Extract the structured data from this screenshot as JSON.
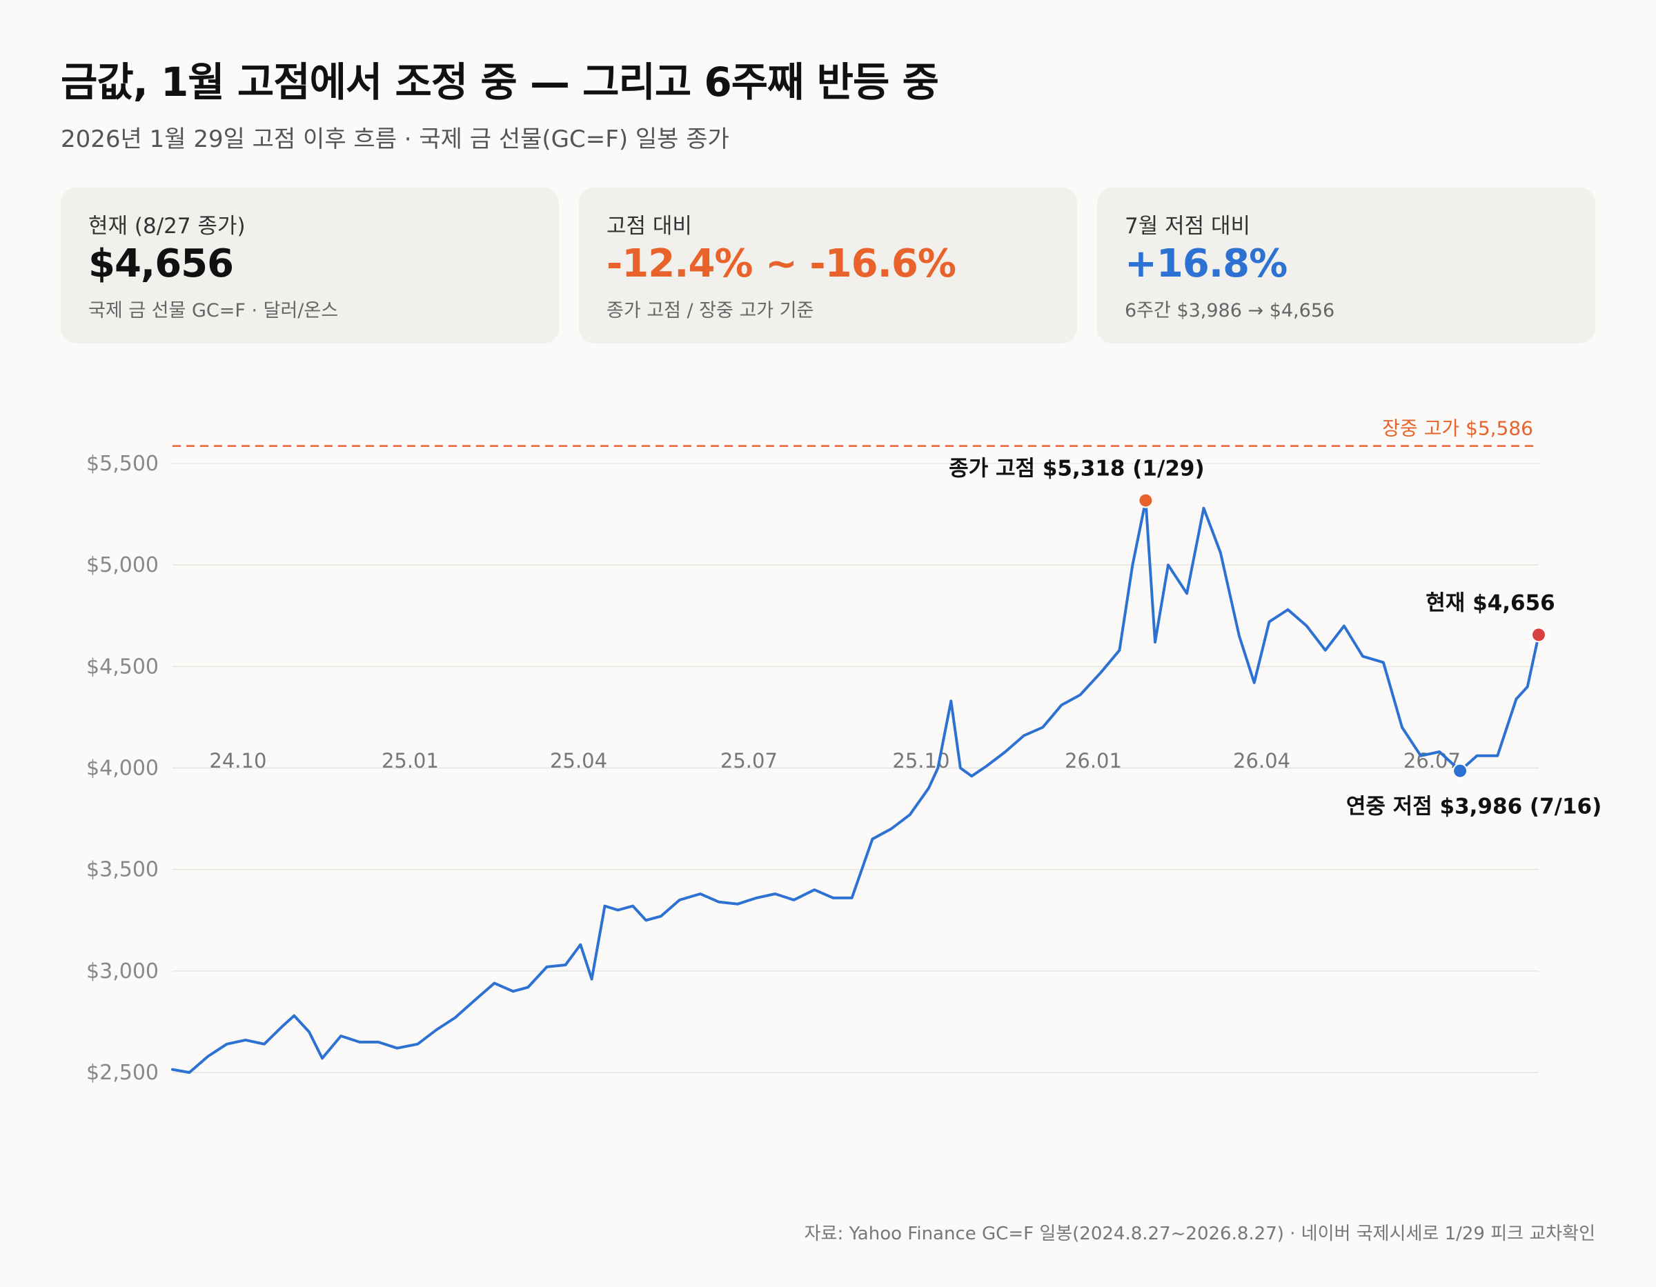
{
  "header": {
    "title": "금값, 1월 고점에서 조정 중 — 그리고 6주째 반등 중",
    "subtitle": "2026년 1월 29일 고점 이후 흐름 · 국제 금 선물(GC=F) 일봉 종가"
  },
  "cards": [
    {
      "label": "현재 (8/27 종가)",
      "value": "$4,656",
      "note": "국제 금 선물 GC=F · 달러/온스",
      "color": "#111111"
    },
    {
      "label": "고점 대비",
      "value": "-12.4% ~ -16.6%",
      "note": "종가 고점 / 장중 고가 기준",
      "color": "#e8632b"
    },
    {
      "label": "7월 저점 대비",
      "value": "+16.8%",
      "note": "6주간 $3,986 → $4,656",
      "color": "#2d72d2"
    }
  ],
  "chart_data": {
    "type": "line",
    "title": "",
    "xlabel": "",
    "ylabel": "",
    "ylim": [
      2250,
      5800
    ],
    "y_ticks": [
      2500,
      3000,
      3500,
      4000,
      4500,
      5000,
      5500
    ],
    "y_tick_labels": [
      "$2,500",
      "$3,000",
      "$3,500",
      "$4,000",
      "$4,500",
      "$5,000",
      "$5,500"
    ],
    "x_range": [
      "2024-08-27",
      "2026-08-27"
    ],
    "x_ticks": [
      "2024-10-01",
      "2025-01-01",
      "2025-04-01",
      "2025-07-01",
      "2025-10-01",
      "2026-01-01",
      "2026-04-01",
      "2026-07-01"
    ],
    "x_tick_labels": [
      "24.10",
      "25.01",
      "25.04",
      "25.07",
      "25.10",
      "26.01",
      "26.04",
      "26.07"
    ],
    "grid": true,
    "line_color": "#2d72d2",
    "series": [
      {
        "x": [
          "2024-08-27",
          "2024-09-05",
          "2024-09-15",
          "2024-09-25",
          "2024-10-05",
          "2024-10-15",
          "2024-10-25",
          "2024-10-31",
          "2024-11-08",
          "2024-11-15",
          "2024-11-25",
          "2024-12-05",
          "2024-12-15",
          "2024-12-25",
          "2025-01-05",
          "2025-01-15",
          "2025-01-25",
          "2025-02-05",
          "2025-02-15",
          "2025-02-25",
          "2025-03-05",
          "2025-03-15",
          "2025-03-25",
          "2025-04-02",
          "2025-04-08",
          "2025-04-15",
          "2025-04-22",
          "2025-04-30",
          "2025-05-07",
          "2025-05-15",
          "2025-05-25",
          "2025-06-05",
          "2025-06-15",
          "2025-06-25",
          "2025-07-05",
          "2025-07-15",
          "2025-07-25",
          "2025-08-05",
          "2025-08-15",
          "2025-08-25",
          "2025-09-05",
          "2025-09-15",
          "2025-09-25",
          "2025-10-05",
          "2025-10-10",
          "2025-10-17",
          "2025-10-22",
          "2025-10-28",
          "2025-11-05",
          "2025-11-15",
          "2025-11-25",
          "2025-12-05",
          "2025-12-15",
          "2025-12-25",
          "2026-01-05",
          "2026-01-15",
          "2026-01-22",
          "2026-01-29",
          "2026-02-03",
          "2026-02-10",
          "2026-02-20",
          "2026-03-01",
          "2026-03-10",
          "2026-03-20",
          "2026-03-28",
          "2026-04-05",
          "2026-04-15",
          "2026-04-25",
          "2026-05-05",
          "2026-05-15",
          "2026-05-25",
          "2026-06-05",
          "2026-06-15",
          "2026-06-25",
          "2026-07-05",
          "2026-07-16",
          "2026-07-25",
          "2026-08-05",
          "2026-08-15",
          "2026-08-21",
          "2026-08-27"
        ],
        "y": [
          2515,
          2500,
          2580,
          2640,
          2660,
          2640,
          2730,
          2780,
          2700,
          2570,
          2680,
          2650,
          2650,
          2620,
          2640,
          2710,
          2770,
          2860,
          2940,
          2900,
          2920,
          3020,
          3030,
          3130,
          2960,
          3320,
          3300,
          3320,
          3250,
          3270,
          3350,
          3380,
          3340,
          3330,
          3360,
          3380,
          3350,
          3400,
          3360,
          3360,
          3650,
          3700,
          3770,
          3900,
          4000,
          4330,
          4000,
          3960,
          4010,
          4080,
          4160,
          4200,
          4310,
          4360,
          4470,
          4580,
          5000,
          5318,
          4620,
          5000,
          4860,
          5280,
          5060,
          4650,
          4420,
          4720,
          4780,
          4700,
          4580,
          4700,
          4550,
          4520,
          4200,
          4060,
          4080,
          3986,
          4060,
          4060,
          4340,
          4400,
          4656
        ]
      }
    ],
    "annotations": [
      {
        "text": "장중 고가 $5,586",
        "value": 5586,
        "kind": "hline",
        "color": "#e8632b"
      },
      {
        "text": "종가 고점 $5,318 (1/29)",
        "x": "2026-01-29",
        "y": 5318,
        "color": "#e8632b"
      },
      {
        "text": "연중 저점 $3,986 (7/16)",
        "x": "2026-07-16",
        "y": 3986,
        "color": "#2d72d2"
      },
      {
        "text": "현재 $4,656",
        "x": "2026-08-27",
        "y": 4656,
        "color": "#d94040"
      }
    ]
  },
  "footer": {
    "source": "자료: Yahoo Finance GC=F 일봉(2024.8.27~2026.8.27) · 네이버 국제시세로 1/29 피크 교차확인"
  }
}
